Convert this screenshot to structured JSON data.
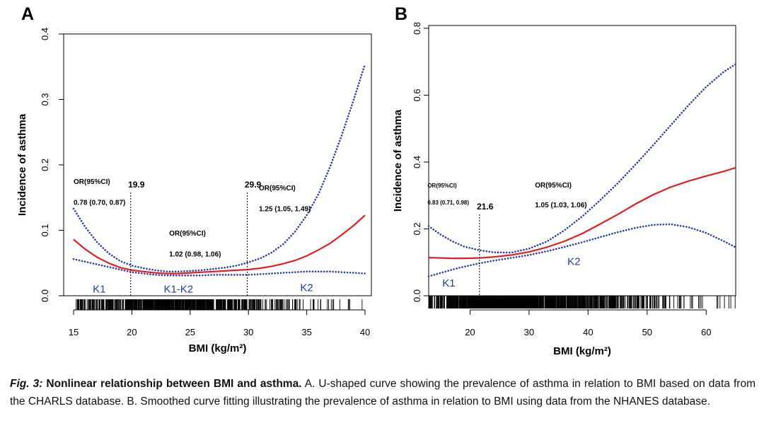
{
  "chart_data": [
    {
      "panel": "A",
      "type": "line",
      "xlabel": "BMI (kg/m²)",
      "ylabel": "Incidence of asthma",
      "xlim": [
        15,
        40
      ],
      "ylim": [
        0,
        0.4
      ],
      "xticks": [
        15,
        20,
        25,
        30,
        35,
        40
      ],
      "yticks": [
        0.0,
        0.1,
        0.2,
        0.3,
        0.4
      ],
      "ytick_labels": [
        "0.0",
        "0.1",
        "0.2",
        "0.3",
        "0.4"
      ],
      "x": [
        15,
        16,
        17,
        18,
        19,
        20,
        21,
        22,
        23,
        24,
        25,
        26,
        27,
        28,
        29,
        30,
        31,
        32,
        33,
        34,
        35,
        36,
        37,
        38,
        39,
        40
      ],
      "series": [
        {
          "name": "Fitted",
          "style": "solid",
          "color": "#e02020",
          "values": [
            0.086,
            0.071,
            0.059,
            0.05,
            0.043,
            0.039,
            0.037,
            0.035,
            0.034,
            0.034,
            0.035,
            0.036,
            0.037,
            0.038,
            0.039,
            0.04,
            0.042,
            0.045,
            0.049,
            0.054,
            0.061,
            0.07,
            0.08,
            0.093,
            0.107,
            0.123
          ]
        },
        {
          "name": "Upper 95% CI",
          "style": "dotted",
          "color": "#2c3f9a",
          "values": [
            0.133,
            0.105,
            0.082,
            0.065,
            0.053,
            0.046,
            0.042,
            0.039,
            0.037,
            0.037,
            0.038,
            0.039,
            0.041,
            0.043,
            0.046,
            0.051,
            0.057,
            0.066,
            0.079,
            0.098,
            0.123,
            0.155,
            0.197,
            0.245,
            0.298,
            0.354
          ]
        },
        {
          "name": "Lower 95% CI",
          "style": "dotted",
          "color": "#2c3f9a",
          "values": [
            0.056,
            0.052,
            0.048,
            0.044,
            0.04,
            0.036,
            0.034,
            0.032,
            0.031,
            0.031,
            0.031,
            0.031,
            0.032,
            0.032,
            0.032,
            0.032,
            0.033,
            0.034,
            0.035,
            0.036,
            0.037,
            0.037,
            0.037,
            0.036,
            0.035,
            0.034
          ]
        }
      ],
      "breakpoints": [
        {
          "x": 19.9,
          "label": "19.9"
        },
        {
          "x": 29.9,
          "label": "29.9"
        }
      ],
      "segments": [
        {
          "label": "K1",
          "x": 17.2,
          "y": 0.005
        },
        {
          "label": "K1-K2",
          "x": 24.0,
          "y": 0.005
        },
        {
          "label": "K2",
          "x": 35.0,
          "y": 0.007
        }
      ],
      "annotations": [
        {
          "text": "OR(95%CI)",
          "x": 15.0,
          "y": 0.171,
          "size": 10
        },
        {
          "text": "0.78 (0.70, 0.87)",
          "x": 15.0,
          "y": 0.139,
          "size": 10
        },
        {
          "text": "OR(95%CI)",
          "x": 23.2,
          "y": 0.092,
          "size": 10
        },
        {
          "text": "1.02 (0.98, 1.06)",
          "x": 23.2,
          "y": 0.06,
          "size": 10
        },
        {
          "text": "OR(95%CI)",
          "x": 30.9,
          "y": 0.161,
          "size": 10
        },
        {
          "text": "1.25 (1.05, 1.49)",
          "x": 30.9,
          "y": 0.129,
          "size": 10
        }
      ],
      "rug_density": {
        "x": [
          15,
          17,
          19,
          21,
          23,
          25,
          27,
          29,
          31,
          33,
          35,
          37,
          40
        ],
        "weight": [
          0.7,
          1.4,
          2.3,
          3.3,
          3.6,
          3.2,
          2.5,
          1.7,
          1.0,
          0.6,
          0.35,
          0.2,
          0.08
        ]
      }
    },
    {
      "panel": "B",
      "type": "line",
      "xlabel": "BMI (kg/m²)",
      "ylabel": "Incidence of asthma",
      "xlim": [
        13,
        65
      ],
      "ylim": [
        0,
        0.8
      ],
      "xticks": [
        20,
        30,
        40,
        50,
        60
      ],
      "yticks": [
        0.0,
        0.2,
        0.4,
        0.6,
        0.8
      ],
      "ytick_labels": [
        "0.0",
        "0.2",
        "0.4",
        "0.6",
        "0.8"
      ],
      "x": [
        13,
        15,
        17,
        19,
        21.6,
        24,
        27,
        30,
        33,
        36,
        39,
        42,
        45,
        48,
        51,
        54,
        57,
        60,
        63,
        65
      ],
      "series": [
        {
          "name": "Fitted",
          "style": "solid",
          "color": "#e02020",
          "values": [
            0.114,
            0.113,
            0.112,
            0.112,
            0.113,
            0.116,
            0.122,
            0.131,
            0.145,
            0.163,
            0.186,
            0.214,
            0.243,
            0.274,
            0.302,
            0.325,
            0.343,
            0.358,
            0.372,
            0.383
          ]
        },
        {
          "name": "Upper 95% CI",
          "style": "dotted",
          "color": "#2c3f9a",
          "values": [
            0.208,
            0.183,
            0.163,
            0.147,
            0.136,
            0.13,
            0.129,
            0.141,
            0.162,
            0.196,
            0.237,
            0.285,
            0.336,
            0.392,
            0.45,
            0.51,
            0.57,
            0.625,
            0.67,
            0.693
          ]
        },
        {
          "name": "Lower 95% CI",
          "style": "dotted",
          "color": "#2c3f9a",
          "values": [
            0.058,
            0.068,
            0.078,
            0.087,
            0.097,
            0.105,
            0.113,
            0.122,
            0.133,
            0.146,
            0.16,
            0.175,
            0.19,
            0.203,
            0.212,
            0.214,
            0.205,
            0.188,
            0.163,
            0.145
          ]
        }
      ],
      "breakpoints": [
        {
          "x": 21.6,
          "label": "21.6"
        }
      ],
      "segments": [
        {
          "label": "K1",
          "x": 16.4,
          "y": 0.027
        },
        {
          "label": "K2",
          "x": 37.6,
          "y": 0.092
        }
      ],
      "annotations": [
        {
          "text": "OR(95%CI)",
          "x": 12.8,
          "y": 0.324,
          "size": 8
        },
        {
          "text": "0.83 (0.71, 0.98)",
          "x": 12.8,
          "y": 0.273,
          "size": 8
        },
        {
          "text": "OR(95%CI)",
          "x": 31.0,
          "y": 0.324,
          "size": 10
        },
        {
          "text": "1.05 (1.03, 1.06)",
          "x": 31.0,
          "y": 0.265,
          "size": 10
        }
      ],
      "rug_density": {
        "x": [
          13,
          16,
          19,
          22,
          25,
          28,
          31,
          34,
          37,
          40,
          45,
          50,
          55,
          60,
          65
        ],
        "weight": [
          0.5,
          1.2,
          2.2,
          3.0,
          3.3,
          3.2,
          2.8,
          2.2,
          1.7,
          1.2,
          0.7,
          0.4,
          0.2,
          0.1,
          0.05
        ]
      }
    }
  ],
  "caption": {
    "fig_label": "Fig. 3:",
    "title": "Nonlinear relationship between BMI and asthma.",
    "body": "A. U-shaped curve showing the prevalence of asthma in relation to BMI based on data from the CHARLS database. B. Smoothed curve fitting illustrating the prevalence of asthma in relation to BMI using data from the NHANES database."
  },
  "colors": {
    "fit": "#e02020",
    "ci": "#2c3f9a",
    "segment_label": "#1f3f9a"
  }
}
